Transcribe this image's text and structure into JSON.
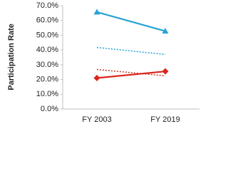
{
  "chart_data": {
    "type": "line",
    "y_label": "Participation Rate",
    "categories": [
      "FY 2003",
      "FY 2019"
    ],
    "series": [
      {
        "color": "#27a3d6",
        "style": "solid",
        "marker": "triangle",
        "values": [
          65.7,
          52.8
        ]
      },
      {
        "color": "#27a3d6",
        "style": "dotted",
        "marker": "none",
        "values": [
          41.7,
          37.0
        ]
      },
      {
        "color": "#c0392b",
        "style": "dotted",
        "marker": "none",
        "values": [
          26.8,
          22.5
        ]
      },
      {
        "color": "#d9261c",
        "style": "solid",
        "marker": "diamond",
        "values": [
          21.0,
          25.5
        ]
      }
    ],
    "ylim": [
      0,
      70
    ],
    "yticks": [
      {
        "value": 0,
        "label": "0.0%"
      },
      {
        "value": 10,
        "label": "10.0%"
      },
      {
        "value": 20,
        "label": "20.0%"
      },
      {
        "value": 30,
        "label": "30.0%"
      },
      {
        "value": 40,
        "label": "40.0%"
      },
      {
        "value": 50,
        "label": "50.0%"
      },
      {
        "value": 60,
        "label": "60.0%"
      },
      {
        "value": 70,
        "label": "70.0%"
      }
    ],
    "grid": false
  }
}
